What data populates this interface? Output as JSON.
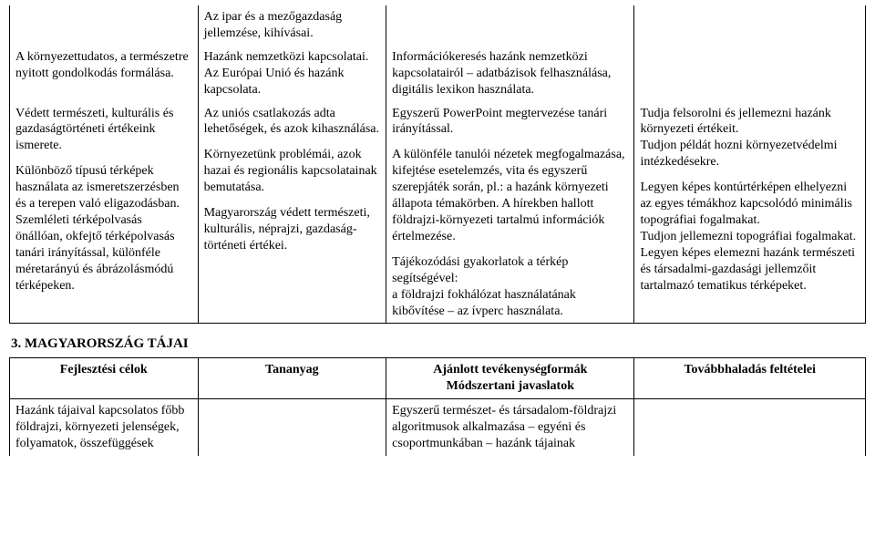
{
  "layout": {
    "col_widths_pct": [
      22,
      22,
      29,
      27
    ],
    "font_family": "Times New Roman",
    "base_font_size_pt": 11,
    "text_color": "#000000",
    "border_color": "#000000",
    "background": "#ffffff"
  },
  "table1": {
    "r1": {
      "c1": "",
      "c2": "Az ipar és a mezőgazdaság jellemzése, kihívásai.",
      "c3": "",
      "c4": ""
    },
    "r2": {
      "c1": "A környezettudatos, a természetre nyitott gondolkodás formálása.",
      "c2": "Hazánk nemzetközi kapcsolatai. Az Európai Unió és hazánk kapcsolata.",
      "c3": "Információkeresés hazánk nemzetközi kapcsolatairól – adatbázisok felhasználása, digitális lexikon használata.",
      "c4": ""
    },
    "r3": {
      "c1_p1": "Védett természeti, kulturális és gazdaságtörténeti értékeink ismerete.",
      "c1_p2": "Különböző típusú térképek használata az ismeretszerzésben és a terepen való eligazodásban. Szemléleti térképolvasás önállóan, okfejtő térképolvasás tanári irányítással, különféle méretarányú és ábrázolásmódú térképeken.",
      "c2_p1": "Az uniós csatlakozás adta lehetőségek, és azok kihasználása.",
      "c2_p2": "Környezetünk problémái, azok hazai és regionális kapcsolatainak bemutatása.",
      "c2_p3": "Magyarország védett természeti, kulturális, néprajzi, gazdaság-történeti értékei.",
      "c3_p1": "Egyszerű PowerPoint megtervezése tanári irányítással.",
      "c3_p2": "A különféle tanulói nézetek megfogalmazása, kifejtése esetelemzés, vita és egyszerű szerepjáték során, pl.: a hazánk környezeti állapota témakörben. A hírekben hallott földrajzi-környezeti tartalmú információk értelmezése.",
      "c3_p3": "Tájékozódási gyakorlatok a térkép segítségével:\na földrajzi fokhálózat használatának kibővítése – az ívperc használata.",
      "c4_p1": "Tudja felsorolni és jellemezni hazánk környezeti értékeit.\nTudjon példát hozni környezetvédelmi intézkedésekre.",
      "c4_p2": "Legyen képes kontúrtérképen elhelyezni az egyes témákhoz kapcsolódó minimális topográfiai fogalmakat.\nTudjon jellemezni topográfiai fogalmakat.\nLegyen képes elemezni hazánk természeti és társadalmi-gazdasági jellemzőit tartalmazó tematikus térképeket."
    }
  },
  "section_heading": "3. MAGYARORSZÁG TÁJAI",
  "table2": {
    "head": {
      "c1": "Fejlesztési célok",
      "c2": "Tananyag",
      "c3": "Ajánlott tevékenységformák\nMódszertani javaslatok",
      "c4": "Továbbhaladás feltételei"
    },
    "r1": {
      "c1": "Hazánk tájaival kapcsolatos főbb földrajzi, környezeti jelenségek, folyamatok, összefüggések",
      "c2": "",
      "c3": "Egyszerű természet- és társadalom-földrajzi algoritmusok alkalmazása – egyéni és csoportmunkában – hazánk tájainak",
      "c4": ""
    }
  }
}
